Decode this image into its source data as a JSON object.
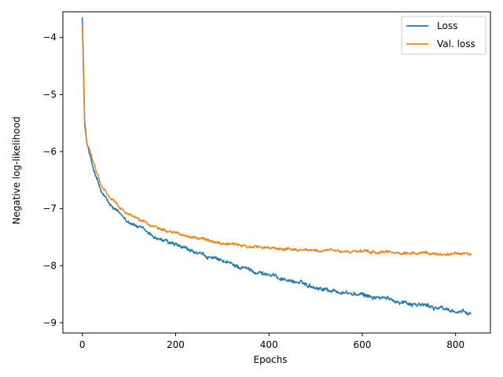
{
  "chart_data": {
    "type": "line",
    "title": "",
    "xlabel": "Epochs",
    "ylabel": "Negative log-likelihood",
    "xlim": [
      -41.65,
      874.65
    ],
    "ylim": [
      -9.18,
      -3.55
    ],
    "xticks": [
      0,
      200,
      400,
      600,
      800
    ],
    "xtick_labels": [
      "0",
      "200",
      "400",
      "600",
      "800"
    ],
    "yticks": [
      -4,
      -5,
      -6,
      -7,
      -8,
      -9
    ],
    "ytick_labels": [
      "−4",
      "−5",
      "−6",
      "−7",
      "−8",
      "−9"
    ],
    "grid": false,
    "legend_position": "top-right",
    "series": [
      {
        "name": "Loss",
        "color": "#1f77b4",
        "noise": 0.035,
        "x": [
          0,
          2,
          5,
          10,
          20,
          30,
          40,
          60,
          80,
          100,
          150,
          200,
          250,
          300,
          350,
          400,
          450,
          500,
          550,
          600,
          650,
          700,
          750,
          800,
          833
        ],
        "y": [
          -3.65,
          -4.3,
          -5.45,
          -5.85,
          -6.2,
          -6.45,
          -6.7,
          -6.95,
          -7.1,
          -7.22,
          -7.48,
          -7.65,
          -7.8,
          -7.93,
          -8.05,
          -8.16,
          -8.27,
          -8.37,
          -8.46,
          -8.52,
          -8.58,
          -8.65,
          -8.72,
          -8.8,
          -8.85
        ]
      },
      {
        "name": "Val. loss",
        "color": "#ff7f0e",
        "noise": 0.025,
        "x": [
          0,
          2,
          5,
          10,
          20,
          30,
          40,
          60,
          80,
          100,
          150,
          200,
          250,
          300,
          350,
          400,
          450,
          500,
          550,
          600,
          650,
          700,
          750,
          800,
          833
        ],
        "y": [
          -3.8,
          -4.5,
          -5.55,
          -5.85,
          -6.1,
          -6.35,
          -6.6,
          -6.82,
          -6.97,
          -7.1,
          -7.3,
          -7.42,
          -7.52,
          -7.6,
          -7.66,
          -7.69,
          -7.71,
          -7.73,
          -7.75,
          -7.76,
          -7.77,
          -7.78,
          -7.79,
          -7.79,
          -7.79
        ]
      }
    ]
  }
}
